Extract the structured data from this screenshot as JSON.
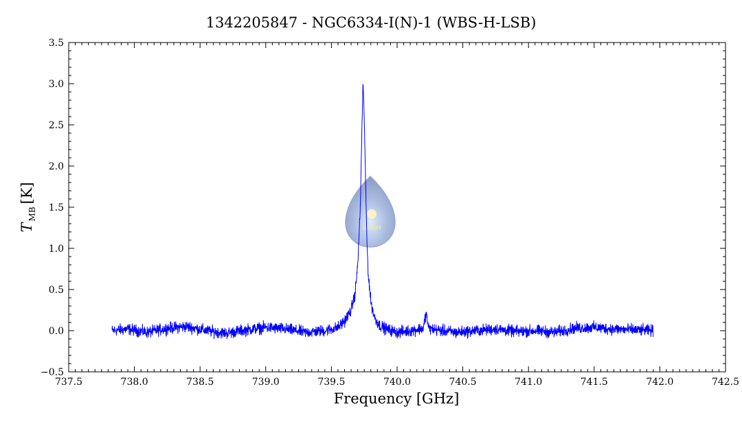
{
  "chart_data": {
    "type": "line",
    "title": "1342205847 - NGC6334-I(N)-1 (WBS-H-LSB)",
    "xlabel": "Frequency [GHz]",
    "ylabel": "T",
    "ylabel_subscript": "MB",
    "ylabel_unit": "[K]",
    "xlim": [
      737.5,
      742.5
    ],
    "ylim": [
      -0.5,
      3.5
    ],
    "xticks": [
      "737.5",
      "738.0",
      "738.5",
      "739.0",
      "739.5",
      "740.0",
      "740.5",
      "741.0",
      "741.5",
      "742.0",
      "742.5"
    ],
    "yticks": [
      "−0.5",
      "0.0",
      "0.5",
      "1.0",
      "1.5",
      "2.0",
      "2.5",
      "3.0",
      "3.5"
    ],
    "grid": false,
    "line_color": "#0000ff",
    "series": [
      {
        "x": [
          737.83,
          737.95,
          738.1,
          738.25,
          738.4,
          738.55,
          738.7,
          738.85,
          739.0,
          739.15,
          739.3,
          739.45,
          739.55,
          739.6,
          739.65,
          739.68,
          739.7,
          739.72,
          739.73,
          739.74,
          739.75,
          739.76,
          739.77,
          739.78,
          739.8,
          739.83,
          739.87,
          739.92,
          740.0,
          740.1,
          740.2,
          740.22,
          740.24,
          740.3,
          740.45,
          740.6,
          740.75,
          740.9,
          741.05,
          741.2,
          741.35,
          741.5,
          741.65,
          741.8,
          741.95
        ],
        "y": [
          0.0,
          0.02,
          -0.02,
          0.03,
          0.05,
          0.0,
          -0.03,
          0.01,
          0.04,
          0.02,
          -0.02,
          0.0,
          0.04,
          0.12,
          0.25,
          0.45,
          0.8,
          1.5,
          2.3,
          3.0,
          2.6,
          1.8,
          1.1,
          0.7,
          0.35,
          0.15,
          0.06,
          0.02,
          -0.02,
          0.0,
          0.03,
          0.22,
          0.03,
          0.01,
          -0.02,
          0.0,
          0.02,
          -0.01,
          0.0,
          -0.02,
          0.03,
          0.04,
          0.02,
          0.01,
          0.0
        ]
      }
    ],
    "noise_amplitude": 0.05
  },
  "watermark": {
    "text": "WISH",
    "color": "#8fa3d8"
  }
}
